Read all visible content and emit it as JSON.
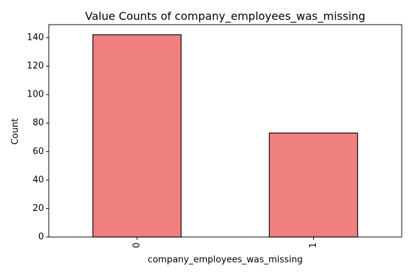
{
  "chart_data": {
    "type": "bar",
    "title": "Value Counts of company_employees_was_missing",
    "xlabel": "company_employees_was_missing",
    "ylabel": "Count",
    "categories": [
      "0",
      "1"
    ],
    "values": [
      142,
      73
    ],
    "ylim": [
      0,
      149.1
    ],
    "yticks": [
      0,
      20,
      40,
      60,
      80,
      100,
      120,
      140
    ],
    "grid": false,
    "legend": "none",
    "x_tick_rotation": 90,
    "bar_color": "#f08080",
    "bar_edge_color": "#000000"
  }
}
